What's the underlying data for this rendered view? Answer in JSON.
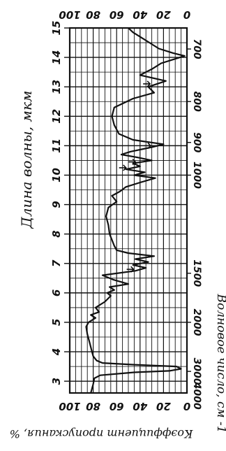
{
  "chart_data": {
    "type": "line",
    "orientation": "rotated-90-clockwise",
    "title": "",
    "xlabel": "Длина волны, мкм",
    "x2label": "Волновое число, см -1",
    "ylabel": "Коэффициент пропускания, %",
    "xlim": [
      2.6,
      15.0
    ],
    "ylim": [
      0,
      100
    ],
    "x_ticks": [
      3,
      4,
      5,
      6,
      7,
      8,
      9,
      10,
      11,
      12,
      13,
      14,
      15
    ],
    "x2_ticks": [
      {
        "label": "4000",
        "at_um": 2.5
      },
      {
        "label": "3000",
        "at_um": 3.333
      },
      {
        "label": "2000",
        "at_um": 5.0
      },
      {
        "label": "1500",
        "at_um": 6.667
      },
      {
        "label": "1000",
        "at_um": 10.0
      },
      {
        "label": "900",
        "at_um": 11.111
      },
      {
        "label": "800",
        "at_um": 12.5
      },
      {
        "label": "700",
        "at_um": 14.286
      }
    ],
    "y_ticks_left": [
      "100",
      "80",
      "60",
      "40",
      "20",
      "0"
    ],
    "y_ticks_right": [
      "100",
      "80",
      "60",
      "40",
      "20",
      "0"
    ],
    "grid": true,
    "series": [
      {
        "x": [
          2.6,
          2.9,
          3.1,
          3.2,
          3.3,
          3.35,
          3.42,
          3.5,
          3.56,
          3.62,
          3.7,
          3.85,
          4.0,
          4.3,
          4.6,
          4.85,
          5.0,
          5.15,
          5.25,
          5.35,
          5.5,
          5.7,
          5.9,
          6.0,
          6.1,
          6.2,
          6.3,
          6.45,
          6.6,
          6.75,
          6.85,
          6.95,
          7.05,
          7.15,
          7.25,
          7.35,
          7.45,
          7.6,
          7.8,
          8.0,
          8.3,
          8.6,
          8.9,
          9.1,
          9.3,
          9.45,
          9.6,
          9.75,
          9.9,
          10.0,
          10.1,
          10.2,
          10.3,
          10.4,
          10.5,
          10.6,
          10.7,
          10.8,
          10.95,
          11.05,
          11.2,
          11.4,
          11.7,
          12.0,
          12.3,
          12.6,
          12.8,
          13.0,
          13.2,
          13.4,
          13.6,
          13.8,
          13.95,
          14.05,
          14.15,
          14.3,
          14.5,
          14.7,
          14.85,
          15.0
        ],
        "y": [
          82,
          80,
          79,
          74,
          45,
          15,
          5,
          9,
          45,
          72,
          77,
          80,
          81,
          83,
          85,
          86,
          84,
          78,
          82,
          75,
          78,
          70,
          65,
          68,
          62,
          66,
          50,
          63,
          72,
          44,
          35,
          46,
          33,
          44,
          28,
          50,
          60,
          62,
          64,
          66,
          67,
          69,
          67,
          60,
          64,
          57,
          52,
          40,
          27,
          45,
          36,
          52,
          40,
          46,
          30,
          42,
          56,
          48,
          30,
          20,
          46,
          58,
          62,
          64,
          62,
          46,
          28,
          33,
          18,
          40,
          30,
          22,
          10,
          2,
          12,
          24,
          32,
          40,
          46,
          50
        ]
      }
    ],
    "annotations": {
      "arrow_marks_um": [
        6.8,
        10.25,
        10.45,
        11.0,
        13.1
      ]
    }
  }
}
